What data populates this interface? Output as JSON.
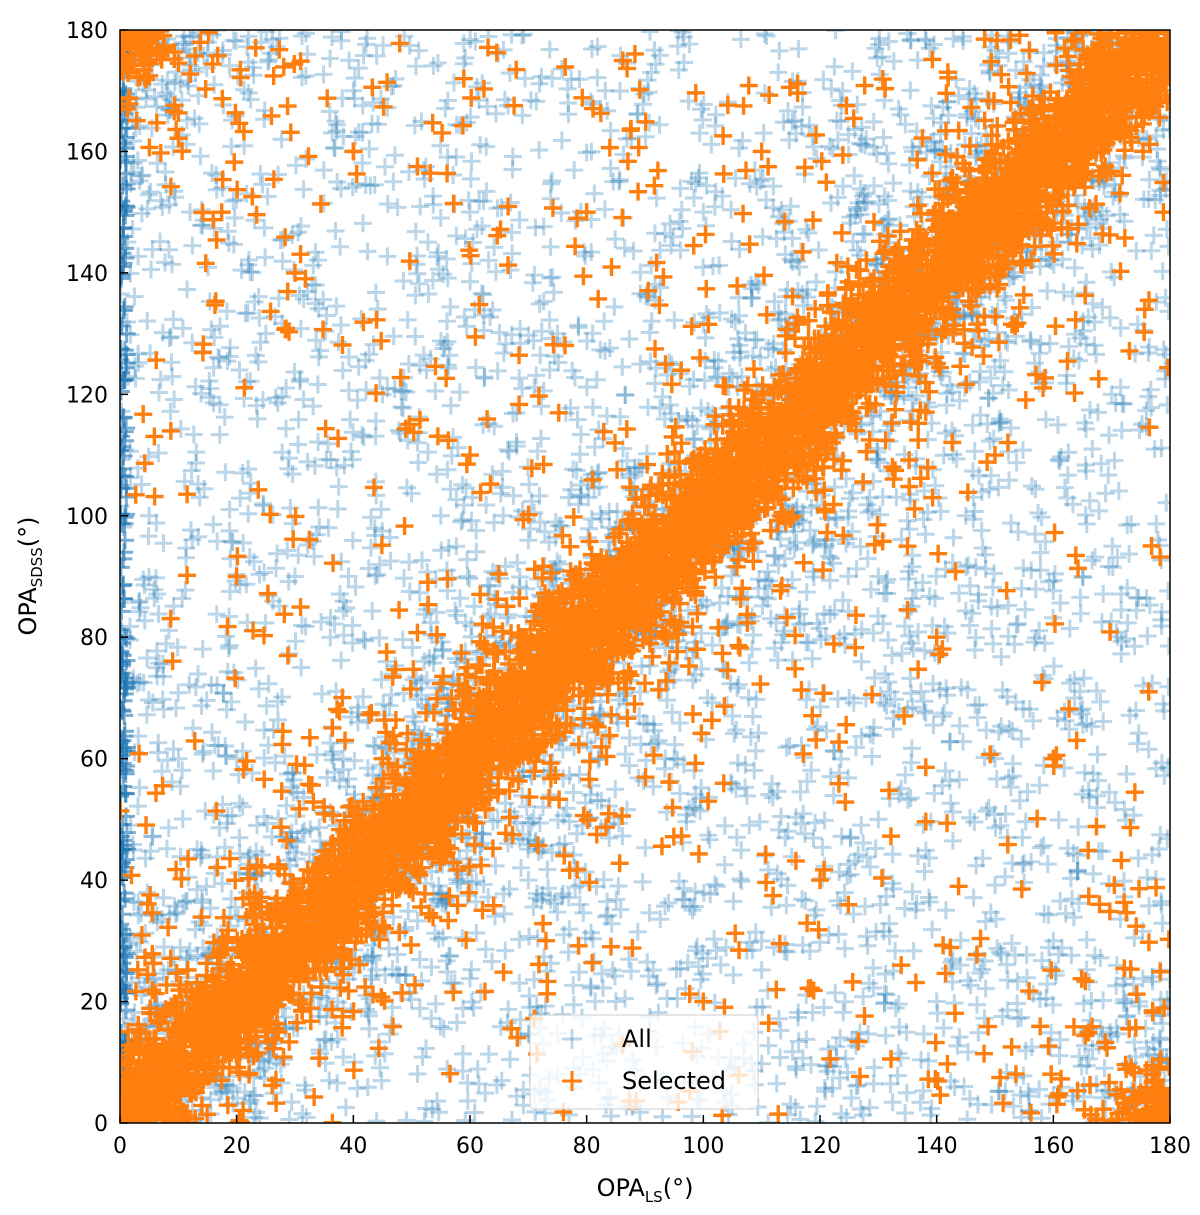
{
  "chart_data": {
    "type": "scatter",
    "title": "",
    "xlabel": {
      "main": "OPA",
      "sub": "LS",
      "unit": "(°)"
    },
    "ylabel": {
      "main": "OPA",
      "sub": "SDSS",
      "unit": "(°)"
    },
    "xlim": [
      0,
      180
    ],
    "ylim": [
      0,
      180
    ],
    "xticks": [
      0,
      20,
      40,
      60,
      80,
      100,
      120,
      140,
      160,
      180
    ],
    "yticks": [
      0,
      20,
      40,
      60,
      80,
      100,
      120,
      140,
      160,
      180
    ],
    "grid": false,
    "legend": {
      "placement": "bottom-center"
    },
    "marker": "plus",
    "series": [
      {
        "name": "All",
        "color": "#1f77b4",
        "alpha": 0.3,
        "distribution": "dense band along y = x (width about ±8°, wrapping at 0/180), with sparse scatter filling the whole plane",
        "points": [
          [
            12,
            150
          ],
          [
            25,
            130
          ],
          [
            30,
            90
          ],
          [
            45,
            120
          ],
          [
            60,
            150
          ],
          [
            70,
            40
          ],
          [
            85,
            20
          ],
          [
            95,
            60
          ],
          [
            110,
            30
          ],
          [
            125,
            70
          ],
          [
            140,
            20
          ],
          [
            150,
            60
          ],
          [
            165,
            90
          ],
          [
            170,
            120
          ],
          [
            100,
            150
          ],
          [
            40,
            170
          ],
          [
            20,
            60
          ],
          [
            55,
            100
          ],
          [
            75,
            130
          ],
          [
            130,
            50
          ],
          [
            145,
            100
          ],
          [
            160,
            30
          ],
          [
            5,
            100
          ],
          [
            35,
            35
          ],
          [
            90,
            90
          ],
          [
            150,
            150
          ],
          [
            60,
            60
          ],
          [
            120,
            120
          ],
          [
            178,
            10
          ],
          [
            2,
            175
          ]
        ]
      },
      {
        "name": "Selected",
        "color": "#ff7f0e",
        "alpha": 1.0,
        "distribution": "very dense band along y = x (width about ±6°), wrapping at the 0/180 corners, plus sparse scatter",
        "points": [
          [
            10,
            10
          ],
          [
            30,
            30
          ],
          [
            50,
            50
          ],
          [
            70,
            70
          ],
          [
            90,
            90
          ],
          [
            110,
            110
          ],
          [
            130,
            130
          ],
          [
            150,
            150
          ],
          [
            170,
            170
          ],
          [
            175,
            5
          ],
          [
            5,
            175
          ],
          [
            20,
            90
          ],
          [
            40,
            160
          ],
          [
            60,
            110
          ],
          [
            80,
            150
          ],
          [
            120,
            40
          ],
          [
            140,
            80
          ],
          [
            160,
            60
          ],
          [
            100,
            20
          ],
          [
            30,
            140
          ],
          [
            150,
            110
          ],
          [
            110,
            160
          ],
          [
            45,
            60
          ],
          [
            135,
            95
          ]
        ]
      }
    ]
  }
}
